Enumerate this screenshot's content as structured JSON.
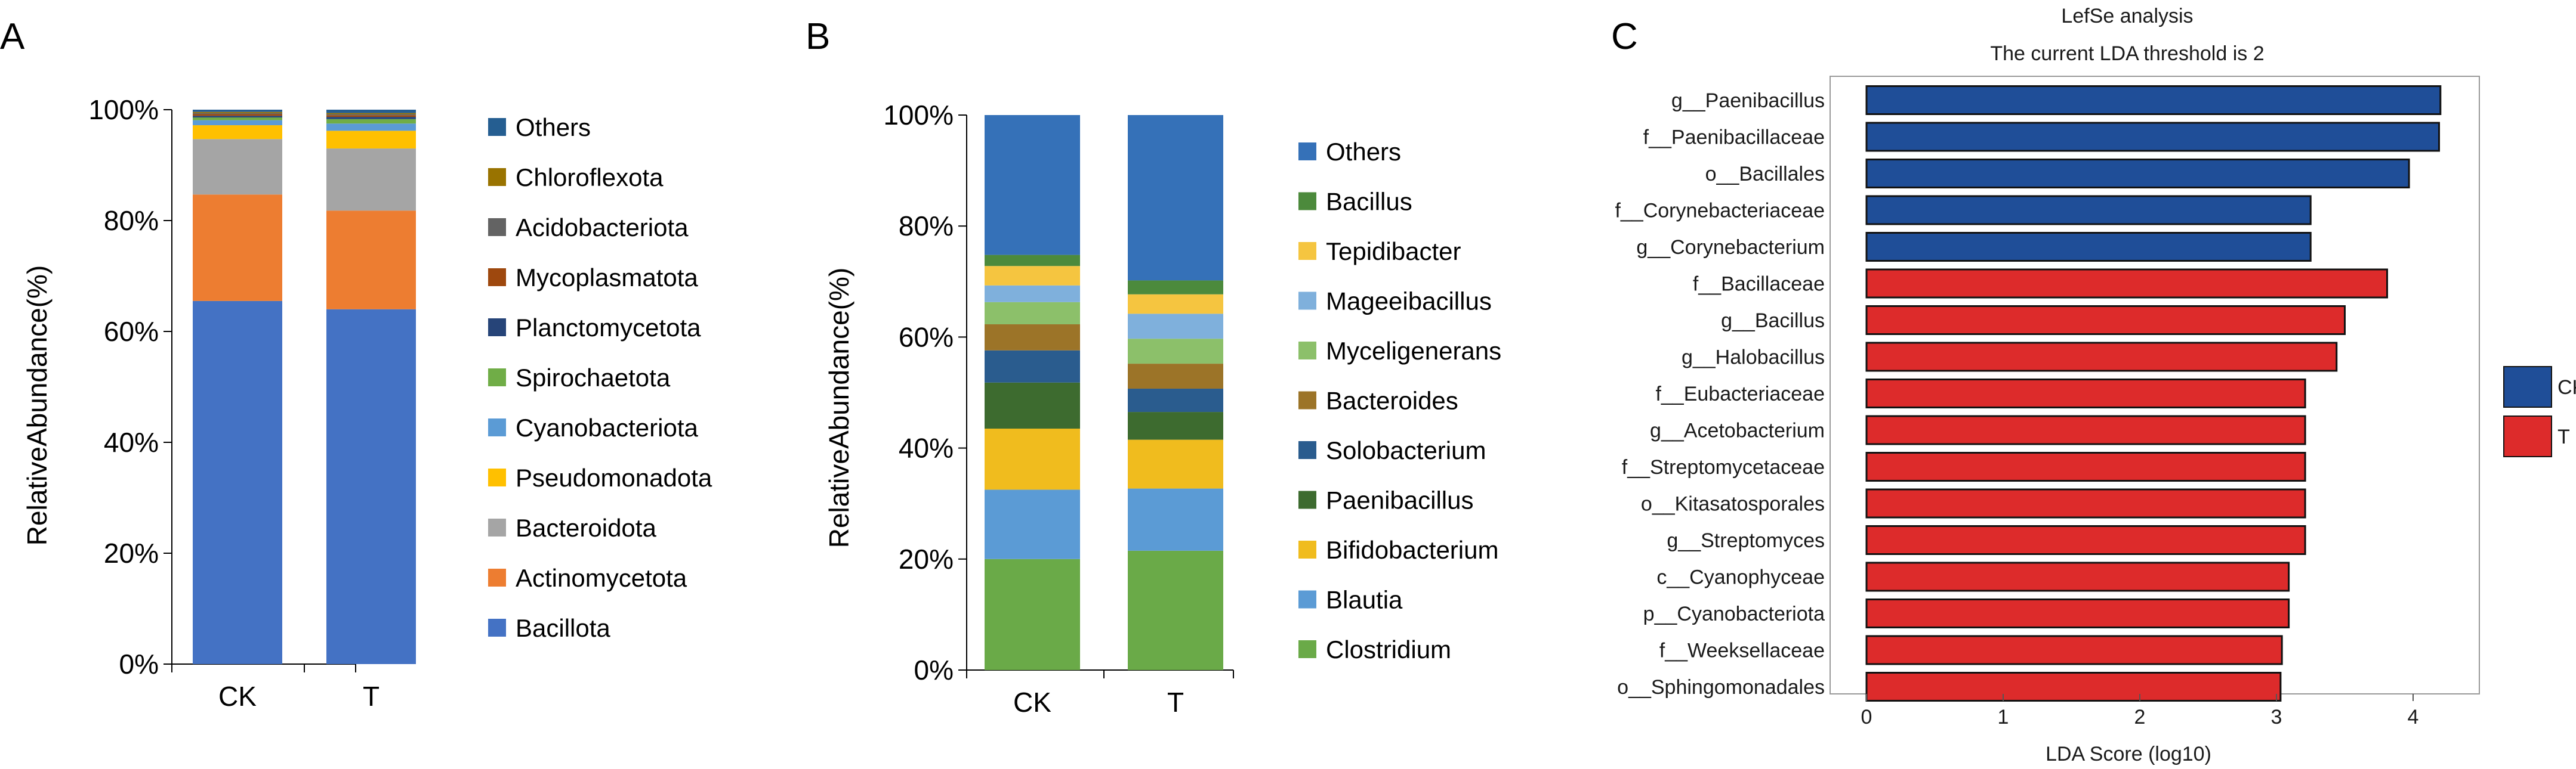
{
  "chart_data": [
    {
      "panel": "A",
      "type": "stacked-bar",
      "ylabel": "RelativeAbundance(%)",
      "ylim": [
        0,
        100
      ],
      "yticks": [
        "0%",
        "20%",
        "40%",
        "60%",
        "80%",
        "100%"
      ],
      "categories": [
        "CK",
        "T"
      ],
      "series": [
        {
          "name": "Bacillota",
          "color": "#4472c4",
          "values": [
            65.5,
            64.0
          ]
        },
        {
          "name": "Actinomycetota",
          "color": "#ed7d31",
          "values": [
            19.2,
            17.8
          ]
        },
        {
          "name": "Bacteroidota",
          "color": "#a5a5a5",
          "values": [
            10.0,
            11.2
          ]
        },
        {
          "name": "Pseudomonadota",
          "color": "#ffc000",
          "values": [
            2.5,
            3.2
          ]
        },
        {
          "name": "Cyanobacteriota",
          "color": "#5b9bd5",
          "values": [
            0.9,
            1.3
          ]
        },
        {
          "name": "Spirochaetota",
          "color": "#70ad47",
          "values": [
            0.5,
            0.8
          ]
        },
        {
          "name": "Planctomycetota",
          "color": "#264478",
          "values": [
            0.3,
            0.4
          ]
        },
        {
          "name": "Mycoplasmatota",
          "color": "#9e480e",
          "values": [
            0.3,
            0.3
          ]
        },
        {
          "name": "Acidobacteriota",
          "color": "#636363",
          "values": [
            0.2,
            0.2
          ]
        },
        {
          "name": "Chloroflexota",
          "color": "#997300",
          "values": [
            0.2,
            0.2
          ]
        },
        {
          "name": "Others",
          "color": "#255e91",
          "values": [
            0.4,
            0.6
          ]
        }
      ]
    },
    {
      "panel": "B",
      "type": "stacked-bar",
      "ylabel": "RelativeAbundance(%)",
      "ylim": [
        0,
        100
      ],
      "yticks": [
        "0%",
        "20%",
        "40%",
        "60%",
        "80%",
        "100%"
      ],
      "categories": [
        "CK",
        "T"
      ],
      "series": [
        {
          "name": "Clostridium",
          "color": "#6aaa48",
          "values": [
            20.0,
            21.5
          ]
        },
        {
          "name": "Blautia",
          "color": "#5b9bd5",
          "values": [
            12.5,
            11.2
          ]
        },
        {
          "name": "Bifidobacterium",
          "color": "#f0bc1e",
          "values": [
            11.0,
            8.8
          ]
        },
        {
          "name": "Paenibacillus",
          "color": "#3d6b2f",
          "values": [
            8.3,
            5.0
          ]
        },
        {
          "name": "Solobacterium",
          "color": "#2a5c8e",
          "values": [
            5.8,
            4.2
          ]
        },
        {
          "name": "Bacteroides",
          "color": "#9c7428",
          "values": [
            4.7,
            4.5
          ]
        },
        {
          "name": "Myceligenerans",
          "color": "#8cc06a",
          "values": [
            4.0,
            4.5
          ]
        },
        {
          "name": "Mageeibacillus",
          "color": "#7fb0dc",
          "values": [
            3.0,
            4.5
          ]
        },
        {
          "name": "Tepidibacter",
          "color": "#f5c540",
          "values": [
            3.5,
            3.5
          ]
        },
        {
          "name": "Bacillus",
          "color": "#4c8a3c",
          "values": [
            2.0,
            2.5
          ]
        },
        {
          "name": "Others",
          "color": "#3571b8",
          "values": [
            25.2,
            29.8
          ]
        }
      ]
    },
    {
      "panel": "C",
      "type": "horizontal-bar",
      "title": "LefSe analysis",
      "subtitle": "The current LDA threshold is 2",
      "xlabel": "LDA Score (log10)",
      "xlim": [
        0,
        4.4
      ],
      "xticks": [
        0,
        1,
        2,
        3,
        4
      ],
      "groups": [
        {
          "name": "CK",
          "color": "#1f4e98"
        },
        {
          "name": "T",
          "color": "#dd2b2b"
        }
      ],
      "bars": [
        {
          "label": "g__Paenibacillus",
          "value": 4.2,
          "group": "CK"
        },
        {
          "label": "f__Paenibacillaceae",
          "value": 4.19,
          "group": "CK"
        },
        {
          "label": "o__Bacillales",
          "value": 3.97,
          "group": "CK"
        },
        {
          "label": "f__Corynebacteriaceae",
          "value": 3.25,
          "group": "CK"
        },
        {
          "label": "g__Corynebacterium",
          "value": 3.25,
          "group": "CK"
        },
        {
          "label": "f__Bacillaceae",
          "value": 3.81,
          "group": "T"
        },
        {
          "label": "g__Bacillus",
          "value": 3.5,
          "group": "T"
        },
        {
          "label": "g__Halobacillus",
          "value": 3.44,
          "group": "T"
        },
        {
          "label": "f__Eubacteriaceae",
          "value": 3.21,
          "group": "T"
        },
        {
          "label": "g__Acetobacterium",
          "value": 3.21,
          "group": "T"
        },
        {
          "label": "f__Streptomycetaceae",
          "value": 3.21,
          "group": "T"
        },
        {
          "label": "o__Kitasatosporales",
          "value": 3.21,
          "group": "T"
        },
        {
          "label": "g__Streptomyces",
          "value": 3.21,
          "group": "T"
        },
        {
          "label": "c__Cyanophyceae",
          "value": 3.09,
          "group": "T"
        },
        {
          "label": "p__Cyanobacteriota",
          "value": 3.09,
          "group": "T"
        },
        {
          "label": "f__Weeksellaceae",
          "value": 3.04,
          "group": "T"
        },
        {
          "label": "o__Sphingomonadales",
          "value": 3.03,
          "group": "T"
        }
      ]
    }
  ],
  "panels": {
    "a": "A",
    "b": "B",
    "c": "C"
  }
}
